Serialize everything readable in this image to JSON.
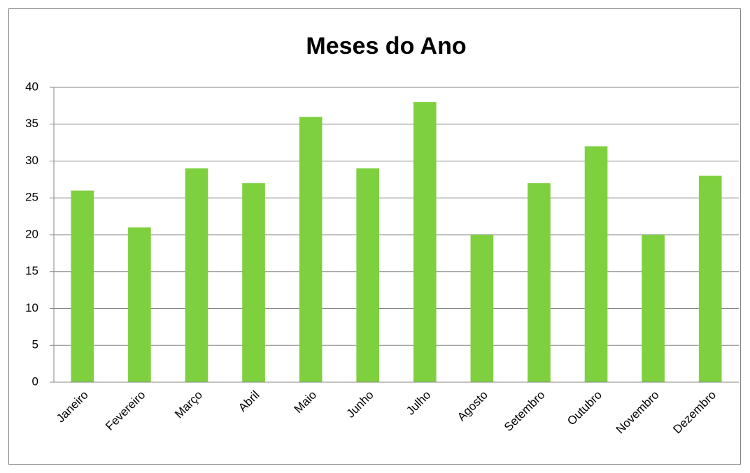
{
  "chart_data": {
    "type": "bar",
    "title": "Meses do Ano",
    "categories": [
      "Janeiro",
      "Fevereiro",
      "Março",
      "Abril",
      "Maio",
      "Junho",
      "Julho",
      "Agosto",
      "Setembro",
      "Outubro",
      "Novembro",
      "Dezembro"
    ],
    "values": [
      26,
      21,
      29,
      27,
      36,
      29,
      38,
      20,
      27,
      32,
      20,
      28
    ],
    "color": "#7ed03f",
    "ylim": [
      0,
      40
    ],
    "yticks": [
      0,
      5,
      10,
      15,
      20,
      25,
      30,
      35,
      40
    ],
    "grid": true
  }
}
